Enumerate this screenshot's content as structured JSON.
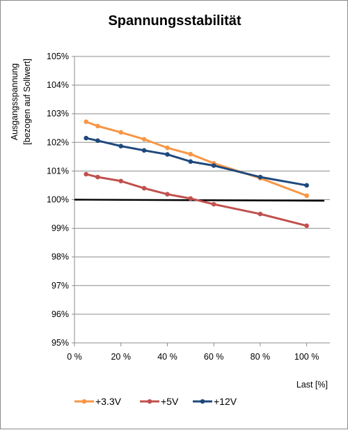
{
  "chart_data": {
    "type": "line",
    "title": "Spannungsstabilität",
    "xlabel": "Last [%]",
    "ylabel_line1": "Ausgangsspannung",
    "ylabel_line2": "[bezogen auf Sollwert]",
    "xlim": [
      0,
      110
    ],
    "ylim": [
      95,
      105
    ],
    "xticks": [
      0,
      20,
      40,
      60,
      80,
      100
    ],
    "xtick_labels": [
      "0 %",
      "20 %",
      "40 %",
      "60 %",
      "80 %",
      "100 %"
    ],
    "yticks": [
      95,
      96,
      97,
      98,
      99,
      100,
      101,
      102,
      103,
      104,
      105
    ],
    "ytick_labels": [
      "95%",
      "96%",
      "97%",
      "98%",
      "99%",
      "100%",
      "101%",
      "102%",
      "103%",
      "104%",
      "105%"
    ],
    "grid": "horizontal",
    "legend_position": "bottom",
    "reference_line": {
      "y": 100,
      "color": "#000000"
    },
    "series": [
      {
        "name": "+3.3V",
        "color": "#F79646",
        "x": [
          5,
          10,
          20,
          30,
          40,
          50,
          60,
          80,
          100
        ],
        "y": [
          102.72,
          102.57,
          102.35,
          102.11,
          101.81,
          101.59,
          101.27,
          100.75,
          100.14
        ]
      },
      {
        "name": "+5V",
        "color": "#C0504D",
        "x": [
          5,
          10,
          20,
          30,
          40,
          50,
          60,
          80,
          100
        ],
        "y": [
          100.89,
          100.79,
          100.65,
          100.4,
          100.19,
          100.04,
          99.84,
          99.5,
          99.09
        ]
      },
      {
        "name": "+12V",
        "color": "#1F497D",
        "x": [
          5,
          10,
          20,
          30,
          40,
          50,
          60,
          80,
          100
        ],
        "y": [
          102.15,
          102.06,
          101.87,
          101.72,
          101.58,
          101.33,
          101.19,
          100.79,
          100.5
        ]
      }
    ]
  }
}
